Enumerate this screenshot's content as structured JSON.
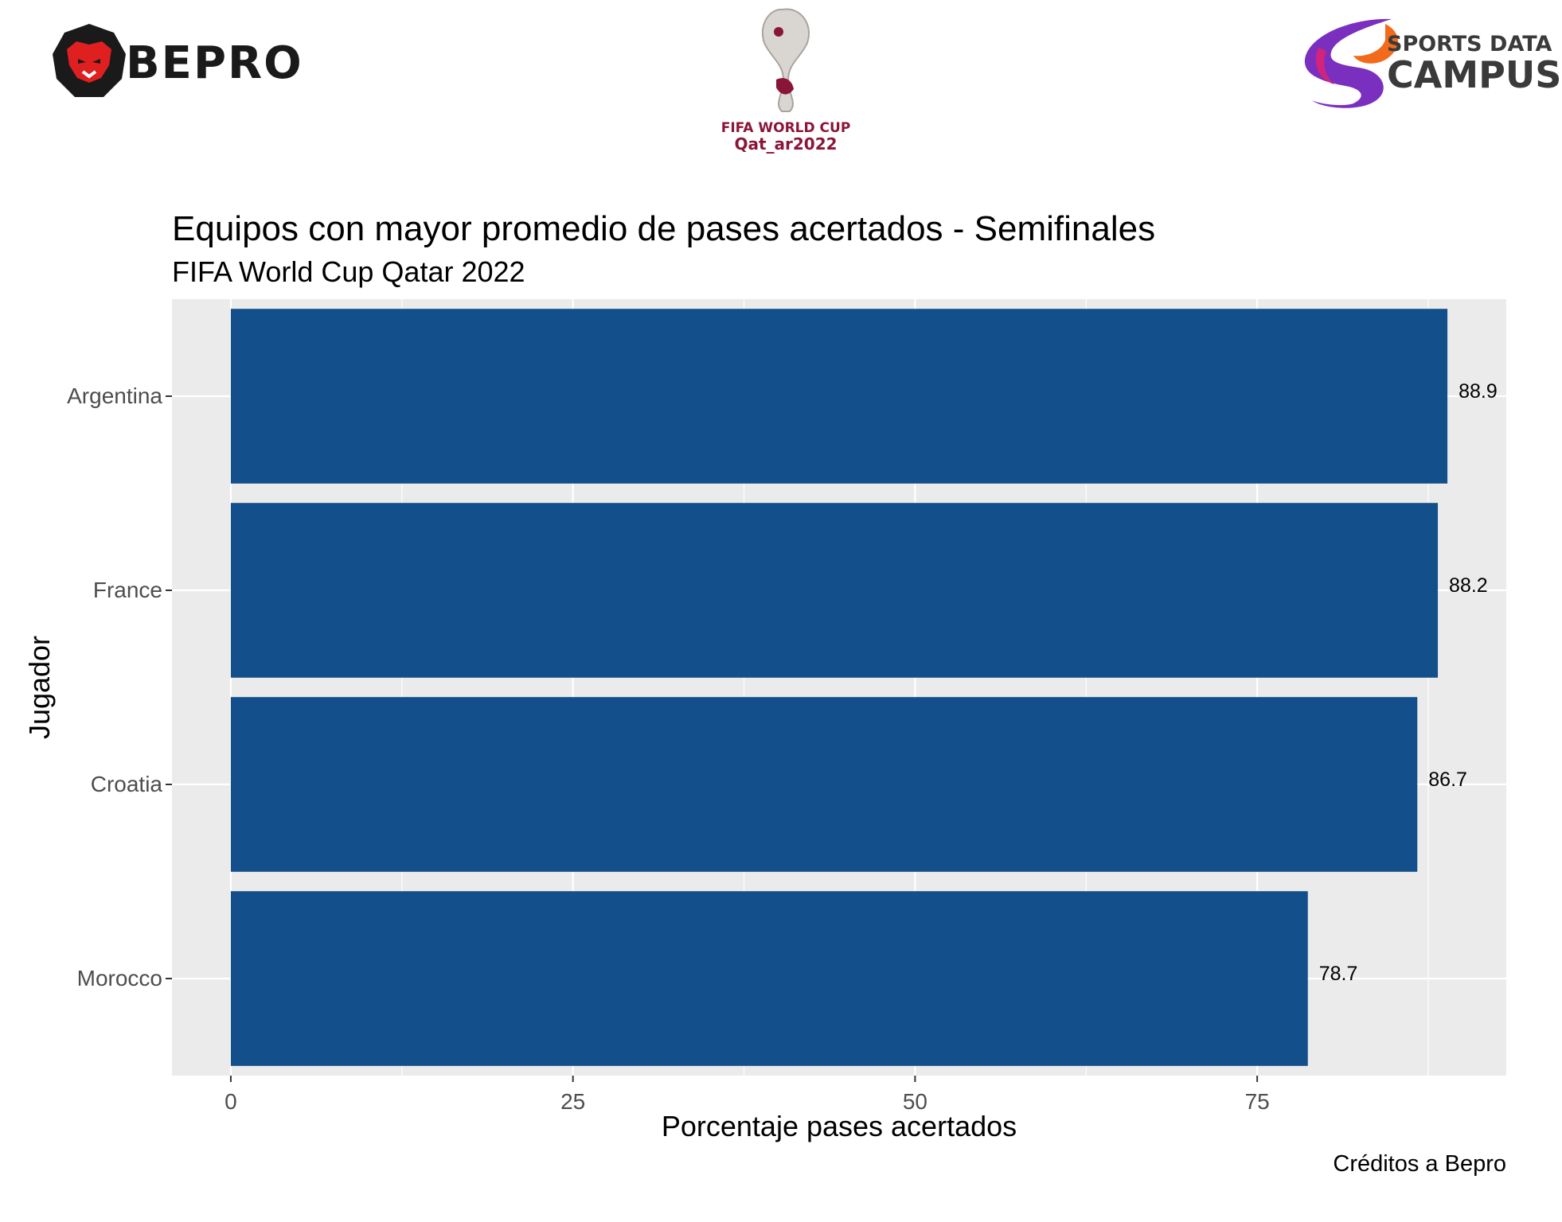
{
  "logos": {
    "bepro": {
      "text": "BEPRO",
      "icon": "lion-head-icon",
      "colors": {
        "outline": "#1a1a1a",
        "face": "#e02020"
      }
    },
    "world_cup": {
      "line1": "FIFA WORLD CUP",
      "line2": "Qat_ar2022",
      "icon": "trophy-icon",
      "color": "#8a1538"
    },
    "sdc": {
      "line1": "SPORTS DATA",
      "line2": "CAMPUS",
      "icon": "swirl-s-icon"
    }
  },
  "colors": {
    "bar": "#134F8A",
    "panel": "#EBEBEB",
    "grid": "#FFFFFF"
  },
  "chart_data": {
    "type": "bar",
    "orientation": "horizontal",
    "title": "Equipos con mayor promedio de pases acertados - Semifinales",
    "subtitle": "FIFA World Cup Qatar 2022",
    "xlabel": "Porcentaje pases acertados",
    "ylabel": "Jugador",
    "categories": [
      "Argentina",
      "France",
      "Croatia",
      "Morocco"
    ],
    "values": [
      88.9,
      88.2,
      86.7,
      78.7
    ],
    "data_labels": [
      "88.9",
      "88.2",
      "86.7",
      "78.7"
    ],
    "xticks": [
      0,
      25,
      50,
      75
    ],
    "xlim": [
      -4.3,
      93.2
    ],
    "grid": true,
    "caption": "Créditos a Bepro"
  }
}
